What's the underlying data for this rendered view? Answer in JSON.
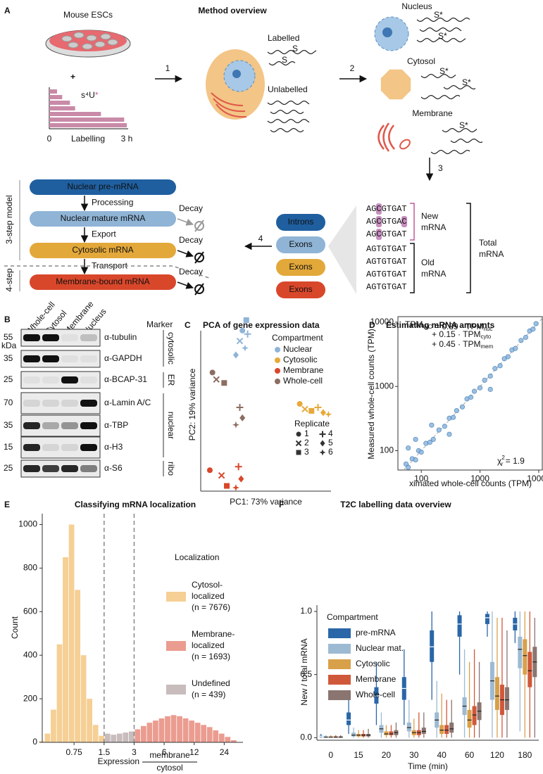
{
  "panel_a": {
    "label": "A",
    "cells": {
      "title": "Mouse ESCs",
      "plus": "+",
      "reagent": "s⁴U",
      "reagent_mark": "*"
    },
    "labelling": {
      "values": [
        0.3,
        0.5,
        0.8,
        1,
        2,
        2.9,
        3
      ],
      "xlim": [
        0,
        3
      ],
      "xticks": [
        {
          "value": 0,
          "label": "0"
        },
        {
          "value": 3,
          "label": "3 h"
        }
      ],
      "xlabel": "Labelling",
      "color": "#c98aa8"
    },
    "steps": [
      "1",
      "2",
      "3",
      "4"
    ],
    "overview": {
      "title": "Method overview",
      "labelled": "Labelled",
      "unlabelled": "Unlabelled"
    },
    "fractions": [
      "Nucleus",
      "Cytosol",
      "Membrane"
    ],
    "rna_marks": [
      "S",
      "S*"
    ],
    "sequences": [
      "AGCGTGAT",
      "AGCGTGAC",
      "AGCGTGAT",
      "AGTGTGAT",
      "AGTGTGAT",
      "AGTGTGAT",
      "AGTGTGAT"
    ],
    "brackets": {
      "new": [
        "New",
        "mRNA"
      ],
      "old": [
        "Old",
        "mRNA"
      ],
      "total": [
        "Total",
        "mRNA"
      ]
    },
    "features": [
      "Introns",
      "Exons",
      "Exons",
      "Exons"
    ],
    "model": {
      "boxes": [
        "Nuclear pre-mRNA",
        "Nuclear mature mRNA",
        "Cytosolic mRNA",
        "Membrane-bound mRNA"
      ],
      "transitions": [
        "Processing",
        "Export",
        "Transport"
      ],
      "decay": "Decay",
      "three_step": "3-step model",
      "four_step": "4-step"
    }
  },
  "panel_b": {
    "label": "B",
    "unit": "kDa",
    "marker_title": "Marker",
    "lanes": [
      "Whole-cell",
      "Cytosol",
      "Membrane",
      "Nucleus"
    ],
    "rows": [
      {
        "kda": 55,
        "antibody": "α-tubulin",
        "bands": [
          1,
          1,
          0.05,
          0.2
        ]
      },
      {
        "kda": 35,
        "antibody": "α-GAPDH",
        "bands": [
          1,
          1,
          0.05,
          0.05
        ]
      },
      {
        "kda": 25,
        "antibody": "α-BCAP-31",
        "bands": [
          0.05,
          0.05,
          1,
          0.05
        ]
      },
      {
        "kda": 70,
        "antibody": "α-Lamin A/C",
        "bands": [
          0.1,
          0.1,
          0.1,
          1
        ]
      },
      {
        "kda": 35,
        "antibody": "α-TBP",
        "bands": [
          0.9,
          0.3,
          0.4,
          1
        ]
      },
      {
        "kda": 15,
        "antibody": "α-H3",
        "bands": [
          0.9,
          0.1,
          0.1,
          1
        ]
      },
      {
        "kda": 25,
        "antibody": "α-S6",
        "bands": [
          0.9,
          0.8,
          0.9,
          0.5
        ]
      }
    ],
    "groups": [
      {
        "label": "cytosolic",
        "color": "#e3a83a"
      },
      {
        "label": "ER",
        "color": "#d9472b"
      },
      {
        "label": "nuclear",
        "color": "#9dbad8"
      },
      {
        "label": "ribo",
        "color": "#222222"
      }
    ]
  },
  "chart_data": [
    {
      "type": "scatter",
      "label": "C",
      "title": "PCA of gene expression data",
      "xlabel": "PC1: 73% variance",
      "ylabel": "PC2: 19% variance",
      "xlim": [
        0,
        1
      ],
      "ylim": [
        0,
        1
      ],
      "legend_title": "Compartment",
      "series": [
        {
          "name": "Nuclear",
          "color": "#8fb4d9",
          "x": [
            0.32,
            0.3,
            0.35,
            0.36,
            0.27,
            0.34
          ],
          "y": [
            0.92,
            0.86,
            0.98,
            0.9,
            0.78,
            0.82
          ]
        },
        {
          "name": "Cytosolic",
          "color": "#e8a93a",
          "x": [
            0.76,
            0.8,
            0.85,
            0.9,
            0.94,
            0.98
          ],
          "y": [
            0.5,
            0.47,
            0.46,
            0.48,
            0.45,
            0.44
          ]
        },
        {
          "name": "Membrane",
          "color": "#d9472b",
          "x": [
            0.07,
            0.16,
            0.2,
            0.29,
            0.31,
            0.27
          ],
          "y": [
            0.12,
            0.09,
            0.03,
            0.14,
            0.07,
            0.02
          ]
        },
        {
          "name": "Whole-cell",
          "color": "#8c6d62",
          "x": [
            0.09,
            0.12,
            0.18,
            0.3,
            0.32,
            0.27
          ],
          "y": [
            0.68,
            0.64,
            0.62,
            0.48,
            0.42,
            0.38
          ]
        }
      ],
      "replicates": {
        "title": "Replicate",
        "labels": [
          "1",
          "2",
          "3",
          "4",
          "5",
          "6"
        ],
        "markers": [
          "circle",
          "x",
          "square",
          "plus",
          "diamond",
          "star"
        ]
      }
    },
    {
      "type": "scatter",
      "label": "D",
      "title": "Estimating mRNA amounts",
      "xlabel": "ximated whole-cell counts (TPM)",
      "ylabel": "Measured whole-cell counts (TPM)",
      "xscale": "log",
      "yscale": "log",
      "xlim": [
        40,
        11500
      ],
      "ylim": [
        50,
        12200
      ],
      "xticks": [
        100,
        1000,
        10000
      ],
      "yticks": [
        100,
        1000,
        10000
      ],
      "identity_line": true,
      "equation": [
        [
          [
            "TPM",
            "WC"
          ],
          [
            " = 0.39 · TPM",
            "nuc"
          ]
        ],
        [
          [
            "+ 0.15 · TPM",
            "cyto"
          ]
        ],
        [
          [
            "+ 0.45 · TPM",
            "mem"
          ]
        ]
      ],
      "chi": {
        "symbol": "χ",
        "sup": "2",
        "sub": "r",
        "text": " = 1.9"
      },
      "series": [
        {
          "color": "#3f7fb8",
          "x": [
            55,
            60,
            70,
            80,
            90,
            100,
            120,
            140,
            160,
            200,
            250,
            300,
            350,
            400,
            500,
            600,
            700,
            800,
            1000,
            1200,
            1500,
            1800,
            2200,
            2600,
            3000,
            3500,
            4000,
            5000,
            6000,
            7000,
            8000,
            9000,
            60,
            80,
            150,
            300,
            1500
          ],
          "y": [
            62,
            55,
            75,
            72,
            100,
            95,
            130,
            135,
            150,
            210,
            240,
            320,
            330,
            420,
            480,
            640,
            680,
            840,
            950,
            1250,
            1450,
            1900,
            2100,
            2700,
            2900,
            3700,
            3900,
            5200,
            5800,
            7300,
            7800,
            9500,
            110,
            150,
            250,
            180,
            900
          ]
        }
      ]
    },
    {
      "type": "histogram",
      "label": "E",
      "title": "Classifying mRNA localization",
      "xlabel": "Expression",
      "xlabel_fraction": {
        "num": "membrane",
        "den": "cytosol"
      },
      "ylabel": "Count",
      "xscale": "log2",
      "xlim": [
        0.36,
        37
      ],
      "xticks": [
        0.75,
        1.5,
        3,
        6,
        12,
        24
      ],
      "ylim": [
        0,
        1050
      ],
      "yticks": [
        0,
        200,
        400,
        600,
        800,
        1000
      ],
      "thresholds": [
        1.5,
        3
      ],
      "bins": [
        0.33,
        0.379,
        0.435,
        0.5,
        0.574,
        0.66,
        0.758,
        0.871,
        1,
        1.149,
        1.32,
        1.516,
        1.741,
        2,
        2.297,
        2.639,
        3.031,
        3.482,
        4,
        4.595,
        5.278,
        6.063,
        6.964,
        8,
        9.19,
        10.556,
        12.126,
        13.929,
        16,
        18.379,
        21.112,
        24.251,
        27.858,
        32
      ],
      "counts": [
        5,
        40,
        150,
        450,
        850,
        1000,
        700,
        400,
        200,
        80,
        30,
        40,
        35,
        40,
        45,
        50,
        60,
        75,
        90,
        100,
        110,
        120,
        125,
        120,
        110,
        100,
        90,
        80,
        70,
        55,
        40,
        25,
        10
      ],
      "colors": [
        "#f5cf94",
        "#f5cf94",
        "#f5cf94",
        "#f5cf94",
        "#f5cf94",
        "#f5cf94",
        "#f5cf94",
        "#f5cf94",
        "#f5cf94",
        "#f5cf94",
        "#f5cf94",
        "#c9bcbc",
        "#c9bcbc",
        "#c9bcbc",
        "#c9bcbc",
        "#c9bcbc",
        "#eb9c90",
        "#eb9c90",
        "#eb9c90",
        "#eb9c90",
        "#eb9c90",
        "#eb9c90",
        "#eb9c90",
        "#eb9c90",
        "#eb9c90",
        "#eb9c90",
        "#eb9c90",
        "#eb9c90",
        "#eb9c90",
        "#eb9c90",
        "#eb9c90",
        "#eb9c90",
        "#eb9c90"
      ],
      "legend": {
        "title": "Localization",
        "entries": [
          {
            "label": [
              "Cytosol-",
              "localized",
              "(n = 7676)"
            ],
            "color": "#f5cf94"
          },
          {
            "label": [
              "Membrane-",
              "localized",
              "(n = 1693)"
            ],
            "color": "#eb9c90"
          },
          {
            "label": [
              "Undefined",
              "(n = 439)"
            ],
            "color": "#c9bcbc"
          }
        ]
      }
    },
    {
      "type": "box",
      "label": "F",
      "title": "T2C labelling data overview",
      "xlabel": "Time (min)",
      "ylabel": "New / total mRNA",
      "categories": [
        "0",
        "15",
        "20",
        "30",
        "40",
        "60",
        "120",
        "180"
      ],
      "ylim": [
        -0.02,
        1.05
      ],
      "yticks": [
        {
          "value": 0,
          "label": "0.0"
        },
        {
          "value": 0.5,
          "label": "0.5"
        },
        {
          "value": 1,
          "label": "1.0"
        }
      ],
      "legend_title": "Compartment",
      "series": [
        {
          "name": "pre-mRNA",
          "color": "#2a66a8",
          "values": [
            [
              0,
              0.005,
              0.01,
              0.015,
              0.03
            ],
            [
              0.03,
              0.1,
              0.14,
              0.2,
              0.35
            ],
            [
              0.1,
              0.27,
              0.33,
              0.4,
              0.6
            ],
            [
              0.1,
              0.3,
              0.39,
              0.48,
              0.7
            ],
            [
              0.3,
              0.6,
              0.72,
              0.85,
              1
            ],
            [
              0.5,
              0.8,
              0.9,
              0.97,
              1
            ],
            [
              0.8,
              0.9,
              0.95,
              0.98,
              1
            ],
            [
              0.75,
              0.85,
              0.9,
              0.95,
              1
            ]
          ]
        },
        {
          "name": "Nuclear mat.",
          "color": "#9dbad3",
          "values": [
            [
              0,
              0,
              0.005,
              0.01,
              0.02
            ],
            [
              0,
              0.01,
              0.02,
              0.04,
              0.08
            ],
            [
              0,
              0.04,
              0.07,
              0.1,
              0.2
            ],
            [
              0,
              0.05,
              0.08,
              0.12,
              0.3
            ],
            [
              0,
              0.08,
              0.14,
              0.2,
              0.45
            ],
            [
              0,
              0.18,
              0.25,
              0.32,
              0.7
            ],
            [
              0,
              0.3,
              0.45,
              0.6,
              1
            ],
            [
              0.05,
              0.55,
              0.7,
              0.8,
              1
            ]
          ]
        },
        {
          "name": "Cytosolic",
          "color": "#d9a04a",
          "values": [
            [
              0,
              0,
              0.005,
              0.01,
              0.02
            ],
            [
              0,
              0.01,
              0.02,
              0.03,
              0.06
            ],
            [
              0,
              0.02,
              0.03,
              0.05,
              0.1
            ],
            [
              0,
              0.02,
              0.04,
              0.06,
              0.15
            ],
            [
              0,
              0.03,
              0.06,
              0.1,
              0.35
            ],
            [
              0,
              0.08,
              0.14,
              0.22,
              0.6
            ],
            [
              0,
              0.22,
              0.33,
              0.48,
              0.95
            ],
            [
              0,
              0.5,
              0.65,
              0.78,
              1
            ]
          ]
        },
        {
          "name": "Membrane",
          "color": "#d0583a",
          "values": [
            [
              0,
              0,
              0.005,
              0.01,
              0.02
            ],
            [
              0,
              0.01,
              0.02,
              0.03,
              0.06
            ],
            [
              0,
              0.02,
              0.03,
              0.05,
              0.1
            ],
            [
              0,
              0.02,
              0.04,
              0.06,
              0.2
            ],
            [
              0,
              0.03,
              0.06,
              0.1,
              0.3
            ],
            [
              0,
              0.1,
              0.18,
              0.25,
              0.7
            ],
            [
              0,
              0.18,
              0.3,
              0.42,
              0.95
            ],
            [
              0,
              0.4,
              0.53,
              0.68,
              1
            ]
          ]
        },
        {
          "name": "Whole-cell",
          "color": "#8a7570",
          "values": [
            [
              0,
              0,
              0.005,
              0.01,
              0.02
            ],
            [
              0,
              0.01,
              0.02,
              0.03,
              0.07
            ],
            [
              0,
              0.02,
              0.04,
              0.06,
              0.12
            ],
            [
              0,
              0.03,
              0.05,
              0.08,
              0.2
            ],
            [
              0,
              0.04,
              0.07,
              0.12,
              0.3
            ],
            [
              0,
              0.14,
              0.21,
              0.28,
              0.6
            ],
            [
              0,
              0.22,
              0.3,
              0.4,
              0.85
            ],
            [
              0,
              0.48,
              0.6,
              0.72,
              0.95
            ]
          ]
        }
      ]
    }
  ]
}
